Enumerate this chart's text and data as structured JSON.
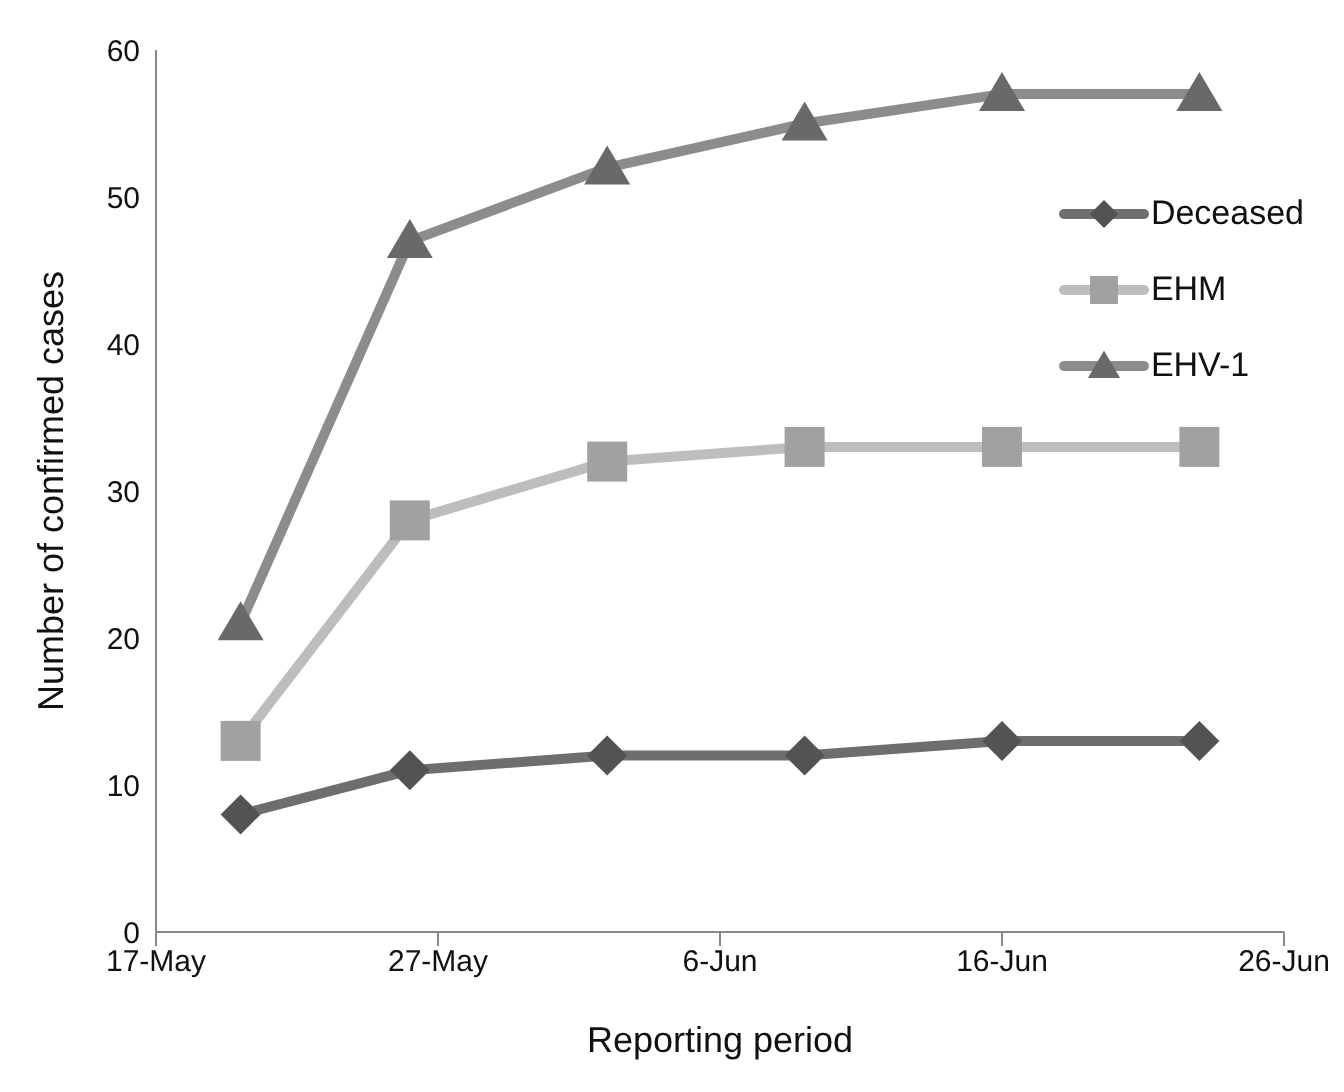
{
  "chart_data": {
    "type": "line",
    "xlabel": "Reporting period",
    "ylabel": "Number of confirmed cases",
    "x": [
      "--05-20",
      "--05-26",
      "--06-02",
      "--06-09",
      "--06-16",
      "--06-23"
    ],
    "xlim": [
      "--05-17",
      "--06-26"
    ],
    "xticks": [
      {
        "value": "--05-17",
        "label": "17-May"
      },
      {
        "value": "--05-27",
        "label": "27-May"
      },
      {
        "value": "--06-06",
        "label": "6-Jun"
      },
      {
        "value": "--06-16",
        "label": "16-Jun"
      },
      {
        "value": "--06-26",
        "label": "26-Jun"
      }
    ],
    "ylim": [
      0,
      60
    ],
    "yticks": [
      0,
      10,
      20,
      30,
      40,
      50,
      60
    ],
    "grid": false,
    "legend": "top right",
    "series": [
      {
        "name": "Deceased",
        "color": "#6e6e6e",
        "marker": "diamond",
        "values": [
          8,
          11,
          12,
          12,
          13,
          13
        ]
      },
      {
        "name": "EHM",
        "color": "#bdbdbd",
        "marker": "square",
        "values": [
          13,
          28,
          32,
          33,
          33,
          33
        ]
      },
      {
        "name": "EHV-1",
        "color": "#8c8c8c",
        "marker": "triangle",
        "values": [
          21,
          47,
          52,
          55,
          57,
          57
        ]
      }
    ]
  }
}
